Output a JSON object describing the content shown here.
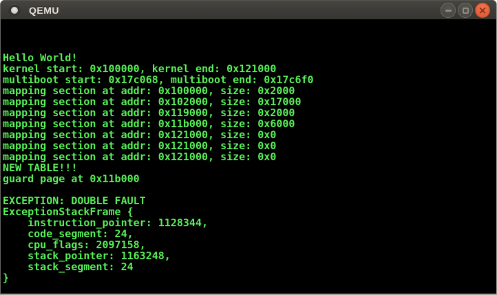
{
  "window": {
    "title": "QEMU",
    "controls": {
      "minimize": "minimize",
      "maximize": "maximize",
      "close": "close",
      "close_glyph": "×"
    }
  },
  "terminal": {
    "lines": [
      "",
      "",
      "",
      "Hello World!",
      "kernel start: 0x100000, kernel end: 0x121000",
      "multiboot start: 0x17c068, multiboot end: 0x17c6f0",
      "mapping section at addr: 0x100000, size: 0x2000",
      "mapping section at addr: 0x102000, size: 0x17000",
      "mapping section at addr: 0x119000, size: 0x2000",
      "mapping section at addr: 0x11b000, size: 0x6000",
      "mapping section at addr: 0x121000, size: 0x0",
      "mapping section at addr: 0x121000, size: 0x0",
      "mapping section at addr: 0x121000, size: 0x0",
      "NEW TABLE!!!",
      "guard page at 0x11b000",
      "",
      "EXCEPTION: DOUBLE FAULT",
      "ExceptionStackFrame {",
      "    instruction_pointer: 1128344,",
      "    code_segment: 24,",
      "    cpu_flags: 2097158,",
      "    stack_pointer: 1163248,",
      "    stack_segment: 24",
      "}",
      ""
    ]
  },
  "colors": {
    "terminal_text": "#58f158",
    "terminal_bg": "#000000",
    "titlebar_bg": "#3c3b37",
    "titlebar_text": "#e7e3dc",
    "close_button": "#dd5530"
  }
}
